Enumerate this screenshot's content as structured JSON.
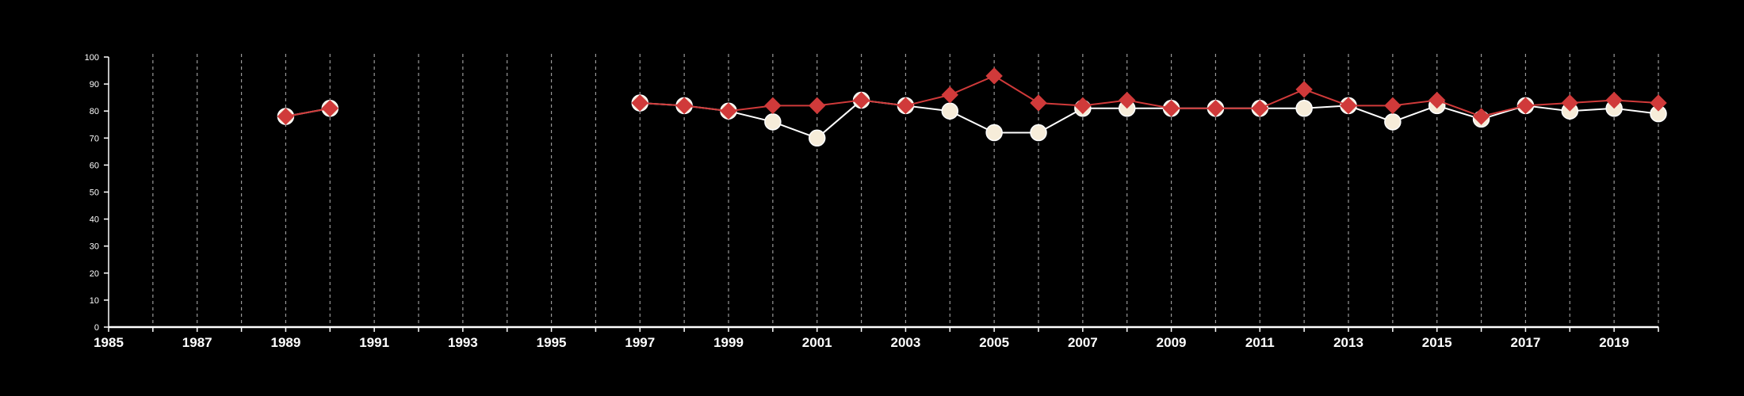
{
  "chart_data": {
    "type": "line",
    "title": "",
    "xlabel": "",
    "ylabel": "",
    "xlim": [
      1985,
      2020
    ],
    "ylim": [
      0,
      100
    ],
    "y_ticks": [
      0,
      10,
      20,
      30,
      40,
      50,
      60,
      70,
      80,
      90,
      100
    ],
    "x_ticks": [
      1985,
      1987,
      1989,
      1991,
      1993,
      1995,
      1997,
      1999,
      2001,
      2003,
      2005,
      2007,
      2009,
      2011,
      2013,
      2015,
      2017,
      2019
    ],
    "grid": {
      "vertical": true,
      "horizontal": false,
      "style": "dashed"
    },
    "background": "#000000",
    "series": [
      {
        "color": "#ffffff",
        "marker": "circle",
        "marker_fill": "#f6ecd9",
        "x": [
          1989,
          1990,
          1997,
          1998,
          1999,
          2000,
          2001,
          2002,
          2003,
          2004,
          2005,
          2006,
          2007,
          2008,
          2009,
          2010,
          2011,
          2012,
          2013,
          2014,
          2015,
          2016,
          2017,
          2018,
          2019,
          2020
        ],
        "values": [
          78,
          81,
          83,
          82,
          80,
          76,
          70,
          84,
          82,
          80,
          72,
          72,
          81,
          81,
          81,
          81,
          81,
          81,
          82,
          76,
          82,
          77,
          82,
          80,
          81,
          79
        ]
      },
      {
        "color": "#d03a3a",
        "marker": "diamond",
        "marker_fill": "#d03a3a",
        "x": [
          1989,
          1990,
          1997,
          1998,
          1999,
          2000,
          2001,
          2002,
          2003,
          2004,
          2005,
          2006,
          2007,
          2008,
          2009,
          2010,
          2011,
          2012,
          2013,
          2014,
          2015,
          2016,
          2017,
          2018,
          2019,
          2020
        ],
        "values": [
          78,
          81,
          83,
          82,
          80,
          82,
          82,
          84,
          82,
          86,
          93,
          83,
          82,
          84,
          81,
          81,
          81,
          88,
          82,
          82,
          84,
          78,
          82,
          83,
          84,
          83
        ]
      }
    ]
  }
}
